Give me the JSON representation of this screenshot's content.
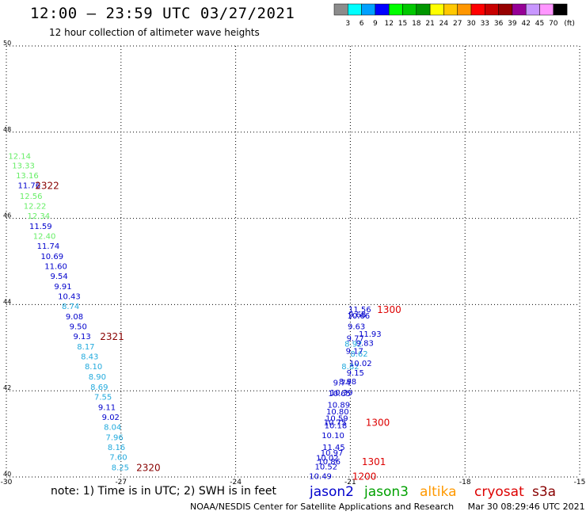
{
  "header": {
    "title": "12:00 – 23:59 UTC 03/27/2021",
    "subtitle": "12 hour collection of altimeter wave heights"
  },
  "colorbar": {
    "labels": [
      "3",
      "6",
      "9",
      "12",
      "15",
      "18",
      "21",
      "24",
      "27",
      "30",
      "33",
      "36",
      "39",
      "42",
      "45",
      "70"
    ],
    "unit": "(ft)",
    "colors": [
      "#8c8c8c",
      "#00ffff",
      "#00a0ff",
      "#0000ff",
      "#00ff00",
      "#00c800",
      "#009600",
      "#ffff00",
      "#ffc800",
      "#ff9600",
      "#ff0000",
      "#c80000",
      "#960000",
      "#960096",
      "#c896ff",
      "#ff96ff",
      "#000000"
    ]
  },
  "footer": {
    "note": "note:  1) Time is in UTC;  2) SWH is in feet",
    "credit": "NOAA/NESDIS Center for Satellite Applications and Research",
    "timestamp": "Mar 30 08:29:46 UTC 2021"
  },
  "legend": [
    {
      "name": "jason2",
      "color": "#0000cc"
    },
    {
      "name": "jason3",
      "color": "#00a000"
    },
    {
      "name": "altika",
      "color": "#ff9900"
    },
    {
      "name": "cryosat",
      "color": "#dd0000"
    },
    {
      "name": "s3a",
      "color": "#880000"
    }
  ],
  "chart_data": {
    "type": "scatter",
    "title": "12:00 – 23:59 UTC 03/27/2021",
    "subtitle": "12 hour collection of altimeter wave heights",
    "xlim": [
      -30,
      -15
    ],
    "ylim": [
      40,
      50
    ],
    "xticks": [
      "-30",
      "-27",
      "-24",
      "-21",
      "-18",
      "-15"
    ],
    "yticks": [
      "40",
      "42",
      "44",
      "46",
      "48",
      "50"
    ],
    "grid": true,
    "colors": {
      "light": "#66ee66",
      "blue": "#0000cc",
      "cyan": "#22aadd",
      "dark": "#880000",
      "red": "#dd0000"
    },
    "labels": [
      {
        "x": -29.95,
        "y": 47.45,
        "text": "12.14",
        "color": "light"
      },
      {
        "x": -29.85,
        "y": 47.23,
        "text": "13.33",
        "color": "light"
      },
      {
        "x": -29.75,
        "y": 47.0,
        "text": "13.16",
        "color": "light"
      },
      {
        "x": -29.7,
        "y": 46.77,
        "text": "11.76",
        "color": "blue"
      },
      {
        "x": -29.65,
        "y": 46.53,
        "text": "12.56",
        "color": "light"
      },
      {
        "x": -29.55,
        "y": 46.3,
        "text": "12.22",
        "color": "light"
      },
      {
        "x": -29.45,
        "y": 46.07,
        "text": "12.34",
        "color": "light"
      },
      {
        "x": -29.4,
        "y": 45.83,
        "text": "11.59",
        "color": "blue"
      },
      {
        "x": -29.3,
        "y": 45.6,
        "text": "12.40",
        "color": "light"
      },
      {
        "x": -29.2,
        "y": 45.37,
        "text": "11.74",
        "color": "blue"
      },
      {
        "x": -29.1,
        "y": 45.13,
        "text": "10.69",
        "color": "blue"
      },
      {
        "x": -29.0,
        "y": 44.9,
        "text": "11.60",
        "color": "blue"
      },
      {
        "x": -28.85,
        "y": 44.67,
        "text": "9.54",
        "color": "blue"
      },
      {
        "x": -28.75,
        "y": 44.43,
        "text": "9.91",
        "color": "blue"
      },
      {
        "x": -28.65,
        "y": 44.2,
        "text": "10.43",
        "color": "blue"
      },
      {
        "x": -28.55,
        "y": 43.97,
        "text": "8.74",
        "color": "cyan"
      },
      {
        "x": -28.45,
        "y": 43.73,
        "text": "9.08",
        "color": "blue"
      },
      {
        "x": -28.35,
        "y": 43.5,
        "text": "9.50",
        "color": "blue"
      },
      {
        "x": -28.25,
        "y": 43.27,
        "text": "9.13",
        "color": "blue"
      },
      {
        "x": -28.15,
        "y": 43.03,
        "text": "8.17",
        "color": "cyan"
      },
      {
        "x": -28.05,
        "y": 42.8,
        "text": "8.43",
        "color": "cyan"
      },
      {
        "x": -27.95,
        "y": 42.57,
        "text": "8.10",
        "color": "cyan"
      },
      {
        "x": -27.85,
        "y": 42.33,
        "text": "8.90",
        "color": "cyan"
      },
      {
        "x": -27.8,
        "y": 42.1,
        "text": "8.69",
        "color": "cyan"
      },
      {
        "x": -27.7,
        "y": 41.87,
        "text": "7.55",
        "color": "cyan"
      },
      {
        "x": -27.6,
        "y": 41.63,
        "text": "9.11",
        "color": "blue"
      },
      {
        "x": -27.5,
        "y": 41.4,
        "text": "9.02",
        "color": "blue"
      },
      {
        "x": -27.45,
        "y": 41.17,
        "text": "8.04",
        "color": "cyan"
      },
      {
        "x": -27.4,
        "y": 40.93,
        "text": "7.96",
        "color": "cyan"
      },
      {
        "x": -27.35,
        "y": 40.7,
        "text": "8.16",
        "color": "cyan"
      },
      {
        "x": -27.3,
        "y": 40.47,
        "text": "7.60",
        "color": "cyan"
      },
      {
        "x": -27.25,
        "y": 40.23,
        "text": "8.25",
        "color": "cyan"
      },
      {
        "x": -22.08,
        "y": 40.03,
        "text": "10.49",
        "color": "blue"
      },
      {
        "x": -21.93,
        "y": 40.25,
        "text": "10.52",
        "color": "blue"
      },
      {
        "x": -21.85,
        "y": 40.37,
        "text": "10.86",
        "color": "blue"
      },
      {
        "x": -21.9,
        "y": 40.45,
        "text": "10.02",
        "color": "blue"
      },
      {
        "x": -21.78,
        "y": 40.57,
        "text": "10.97",
        "color": "blue"
      },
      {
        "x": -21.73,
        "y": 40.7,
        "text": "11.45",
        "color": "blue"
      },
      {
        "x": -21.75,
        "y": 40.97,
        "text": "10.10",
        "color": "blue"
      },
      {
        "x": -21.68,
        "y": 41.2,
        "text": "10.18",
        "color": "blue"
      },
      {
        "x": -21.7,
        "y": 41.28,
        "text": "10.75",
        "color": "blue"
      },
      {
        "x": -21.65,
        "y": 41.37,
        "text": "10.59",
        "color": "blue"
      },
      {
        "x": -21.63,
        "y": 41.53,
        "text": "10.80",
        "color": "blue"
      },
      {
        "x": -21.6,
        "y": 41.68,
        "text": "10.89",
        "color": "blue"
      },
      {
        "x": -21.58,
        "y": 41.95,
        "text": "10.65",
        "color": "blue"
      },
      {
        "x": -21.53,
        "y": 41.97,
        "text": "10.39",
        "color": "blue"
      },
      {
        "x": -21.45,
        "y": 42.2,
        "text": "9.74",
        "color": "blue"
      },
      {
        "x": -21.3,
        "y": 42.22,
        "text": "8.98",
        "color": "blue"
      },
      {
        "x": -21.1,
        "y": 42.43,
        "text": "9.15",
        "color": "blue"
      },
      {
        "x": -21.23,
        "y": 42.57,
        "text": "8.82",
        "color": "cyan"
      },
      {
        "x": -21.03,
        "y": 42.65,
        "text": "10.02",
        "color": "blue"
      },
      {
        "x": -21.0,
        "y": 42.87,
        "text": "8.62",
        "color": "cyan"
      },
      {
        "x": -21.12,
        "y": 42.93,
        "text": "9.17",
        "color": "blue"
      },
      {
        "x": -21.15,
        "y": 43.1,
        "text": "8.92",
        "color": "cyan"
      },
      {
        "x": -20.85,
        "y": 43.12,
        "text": "9.83",
        "color": "blue"
      },
      {
        "x": -21.1,
        "y": 43.23,
        "text": "9.77",
        "color": "blue"
      },
      {
        "x": -20.78,
        "y": 43.33,
        "text": "11.93",
        "color": "blue"
      },
      {
        "x": -21.07,
        "y": 43.5,
        "text": "9.63",
        "color": "blue"
      },
      {
        "x": -21.08,
        "y": 43.75,
        "text": "10.66",
        "color": "blue"
      },
      {
        "x": -21.05,
        "y": 43.78,
        "text": "9.68",
        "color": "blue"
      },
      {
        "x": -21.05,
        "y": 43.9,
        "text": "11.56",
        "color": "blue"
      }
    ],
    "time_labels": [
      {
        "x": -29.25,
        "y": 46.77,
        "text": "2322",
        "color": "dark"
      },
      {
        "x": -27.55,
        "y": 43.27,
        "text": "2321",
        "color": "dark"
      },
      {
        "x": -26.6,
        "y": 40.23,
        "text": "2320",
        "color": "dark"
      },
      {
        "x": -20.3,
        "y": 43.9,
        "text": "1300",
        "color": "red"
      },
      {
        "x": -20.6,
        "y": 41.28,
        "text": "1300",
        "color": "red"
      },
      {
        "x": -20.7,
        "y": 40.37,
        "text": "1301",
        "color": "red"
      },
      {
        "x": -20.95,
        "y": 40.03,
        "text": "1200",
        "color": "red"
      }
    ]
  }
}
